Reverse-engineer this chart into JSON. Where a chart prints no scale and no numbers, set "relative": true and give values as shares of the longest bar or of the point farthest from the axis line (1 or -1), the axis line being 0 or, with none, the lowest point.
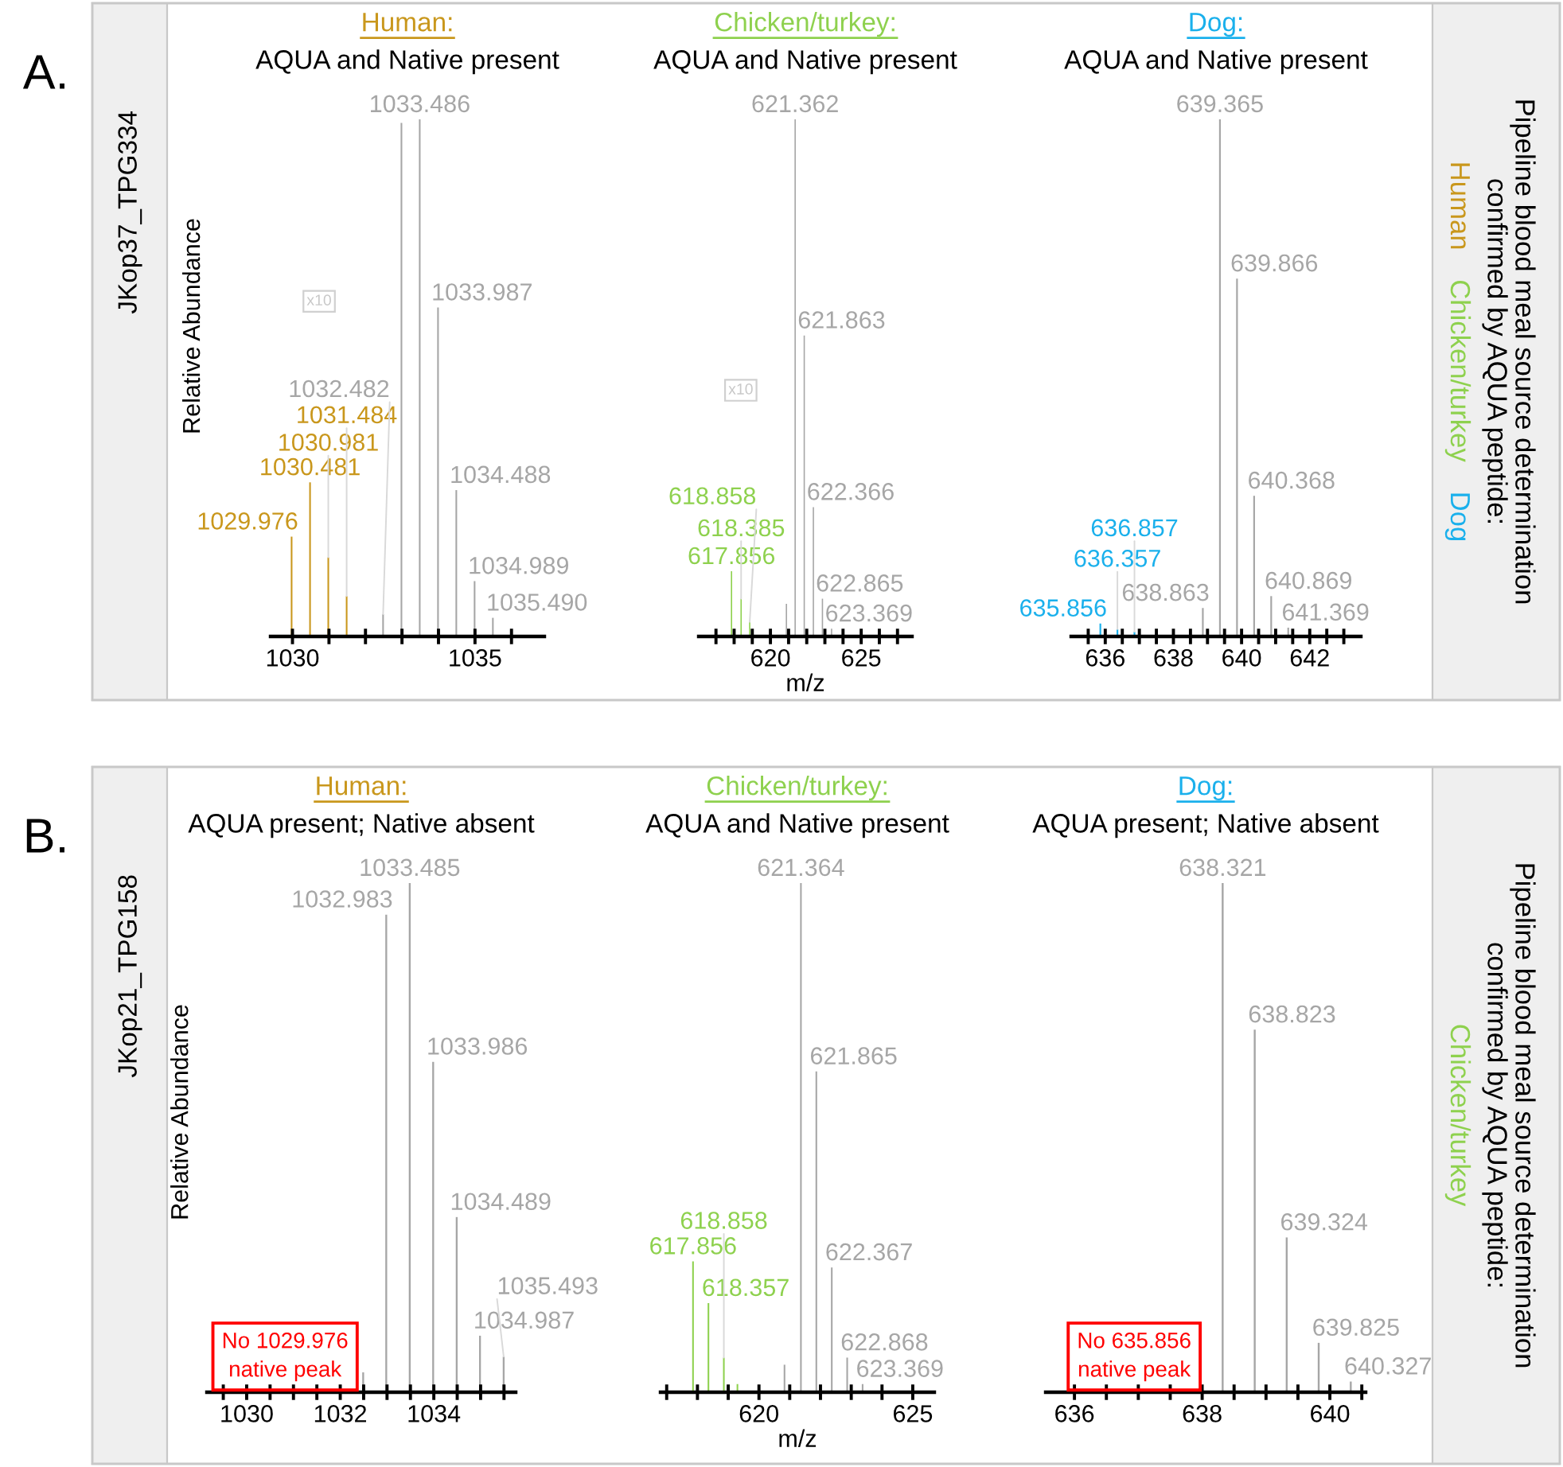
{
  "chart_data": [
    {
      "type": "other",
      "title": "A.",
      "annotations": [
        "JKop37_TPG334"
      ]
    },
    {
      "type": "bar",
      "relative": true,
      "title": "Human:",
      "subtitle": "AQUA and Native present",
      "color": "#c9971c",
      "ylabel": "Relative Abundance",
      "xlim": [
        1029.4,
        1036.9
      ],
      "xticks": [
        1030,
        {
          "value": 1031,
          "label": null
        },
        {
          "value": 1032,
          "label": null
        },
        {
          "value": 1033,
          "label": null
        },
        {
          "value": 1034,
          "label": null
        },
        1035,
        {
          "value": 1036,
          "label": null
        }
      ],
      "series": [
        {
          "color": "#a6a6a6",
          "x": [
            1032.482,
            1032.985,
            1033.486,
            1033.987,
            1034.488,
            1034.989,
            1035.49
          ],
          "values": [
            0.043,
            0.993,
            1,
            0.636,
            0.283,
            0.107,
            0.036
          ]
        },
        {
          "x": [
            1029.976,
            1030.481,
            1030.981,
            1031.484
          ],
          "values": [
            0.193,
            0.298,
            0.153,
            0.078
          ]
        }
      ],
      "annotations": [
        {
          "text": "1032.482",
          "x": 1032.482,
          "y": 0.043
        },
        {
          "text": "1033.486",
          "x": 1033.486,
          "y": 1
        },
        {
          "text": "1033.987",
          "x": 1033.987,
          "y": 0.636
        },
        {
          "text": "1034.488",
          "x": 1034.488,
          "y": 0.283
        },
        {
          "text": "1034.989",
          "x": 1034.989,
          "y": 0.107
        },
        {
          "text": "1035.490",
          "x": 1035.49,
          "y": 0.036
        },
        {
          "text": "1029.976",
          "x": 1029.976,
          "y": 0.193
        },
        {
          "text": "1030.481",
          "x": 1030.481,
          "y": 0.298
        },
        {
          "text": "1030.981",
          "x": 1030.981,
          "y": 0.153
        },
        {
          "text": "1031.484",
          "x": 1031.484,
          "y": 0.078
        },
        "x10"
      ]
    },
    {
      "type": "bar",
      "relative": true,
      "title": "Chicken/turkey:",
      "subtitle": "AQUA and Native present",
      "color": "#8ed14e",
      "xlabel": "m/z",
      "xlim": [
        616.05,
        627.8
      ],
      "xticks": [
        {
          "value": 617,
          "label": null
        },
        {
          "value": 618,
          "label": null
        },
        {
          "value": 619,
          "label": null
        },
        620,
        {
          "value": 621,
          "label": null
        },
        {
          "value": 622,
          "label": null
        },
        {
          "value": 623,
          "label": null
        },
        {
          "value": 624,
          "label": null
        },
        625,
        {
          "value": 626,
          "label": null
        },
        {
          "value": 627,
          "label": null
        }
      ],
      "series": [
        {
          "color": "#a6a6a6",
          "x": [
            620.88,
            621.362,
            621.863,
            622.366,
            622.865,
            623.369
          ],
          "values": [
            0.063,
            1,
            0.582,
            0.25,
            0.073,
            0.015
          ]
        },
        {
          "x": [
            617.856,
            618.385,
            618.858
          ],
          "values": [
            0.126,
            0.073,
            0.028
          ]
        }
      ],
      "annotations": [
        {
          "text": "621.362",
          "x": 621.362,
          "y": 1
        },
        {
          "text": "621.863",
          "x": 621.863,
          "y": 0.582
        },
        {
          "text": "622.366",
          "x": 622.366,
          "y": 0.25
        },
        {
          "text": "622.865",
          "x": 622.865,
          "y": 0.073
        },
        {
          "text": "623.369",
          "x": 623.369,
          "y": 0.015
        },
        {
          "text": "617.856",
          "x": 617.856,
          "y": 0.126
        },
        {
          "text": "618.385",
          "x": 618.385,
          "y": 0.073
        },
        {
          "text": "618.858",
          "x": 618.858,
          "y": 0.028
        },
        "x10"
      ]
    },
    {
      "type": "bar",
      "relative": true,
      "title": "Dog:",
      "subtitle": "AQUA and Native present",
      "color": "#1ab0ec",
      "xlim": [
        635.0,
        643.5
      ],
      "xticks": [
        {
          "value": 635.5,
          "label": null
        },
        636,
        {
          "value": 636.5,
          "label": null
        },
        {
          "value": 637,
          "label": null
        },
        {
          "value": 637.5,
          "label": null
        },
        638,
        {
          "value": 638.5,
          "label": null
        },
        {
          "value": 639,
          "label": null
        },
        {
          "value": 639.5,
          "label": null
        },
        640,
        {
          "value": 640.5,
          "label": null
        },
        {
          "value": 641,
          "label": null
        },
        {
          "value": 641.5,
          "label": null
        },
        642,
        {
          "value": 642.5,
          "label": null
        },
        {
          "value": 643,
          "label": null
        }
      ],
      "series": [
        {
          "color": "#a6a6a6",
          "x": [
            638.863,
            639.365,
            639.866,
            640.368,
            640.869,
            641.369
          ],
          "values": [
            0.055,
            1,
            0.692,
            0.272,
            0.078,
            0.017
          ]
        },
        {
          "x": [
            635.856,
            636.357,
            636.857
          ],
          "values": [
            0.025,
            0.014,
            0.009
          ]
        }
      ],
      "annotations": [
        {
          "text": "638.863",
          "x": 638.863,
          "y": 0.055
        },
        {
          "text": "639.365",
          "x": 639.365,
          "y": 1
        },
        {
          "text": "639.866",
          "x": 639.866,
          "y": 0.692
        },
        {
          "text": "640.368",
          "x": 640.368,
          "y": 0.272
        },
        {
          "text": "640.869",
          "x": 640.869,
          "y": 0.078
        },
        {
          "text": "641.369",
          "x": 641.369,
          "y": 0.017
        },
        {
          "text": "635.856",
          "x": 635.856,
          "y": 0.025
        },
        {
          "text": "636.357",
          "x": 636.357,
          "y": 0.014
        },
        {
          "text": "636.857",
          "x": 636.857,
          "y": 0.009
        }
      ]
    },
    {
      "type": "other",
      "title": "Pipeline blood meal source determination\nconfirmed by AQUA peptide:",
      "series": [
        {
          "name": "Human",
          "color": "#c9971c"
        },
        {
          "name": "Chicken/turkey",
          "color": "#8ed14e"
        },
        {
          "name": "Dog",
          "color": "#1ab0ec"
        }
      ]
    },
    {
      "type": "other",
      "title": "B.",
      "annotations": [
        "JKop21_TPG158"
      ]
    },
    {
      "type": "bar",
      "relative": true,
      "title": "Human:",
      "subtitle": "AQUA present; Native absent",
      "color": "#c9971c",
      "ylabel": "Relative Abundance",
      "xlim": [
        1029.15,
        1035.75
      ],
      "xticks": [
        {
          "value": 1029.5,
          "label": null
        },
        1030,
        {
          "value": 1030.5,
          "label": null
        },
        {
          "value": 1031,
          "label": null
        },
        {
          "value": 1031.5,
          "label": null
        },
        1032,
        {
          "value": 1032.5,
          "label": null
        },
        {
          "value": 1033,
          "label": null
        },
        {
          "value": 1033.5,
          "label": null
        },
        1034,
        {
          "value": 1034.5,
          "label": null
        },
        {
          "value": 1035,
          "label": null
        },
        {
          "value": 1035.5,
          "label": null
        }
      ],
      "series": [
        {
          "color": "#a6a6a6",
          "x": [
            1032.49,
            1032.983,
            1033.485,
            1033.986,
            1034.489,
            1034.987,
            1035.493
          ],
          "values": [
            0.039,
            0.938,
            1,
            0.649,
            0.344,
            0.111,
            0.07
          ]
        }
      ],
      "annotations": [
        {
          "text": "1032.983",
          "x": 1032.983,
          "y": 0.938
        },
        {
          "text": "1033.485",
          "x": 1033.485,
          "y": 1
        },
        {
          "text": "1033.986",
          "x": 1033.986,
          "y": 0.649
        },
        {
          "text": "1034.489",
          "x": 1034.489,
          "y": 0.344
        },
        {
          "text": "1034.987",
          "x": 1034.987,
          "y": 0.111
        },
        {
          "text": "1035.493",
          "x": 1035.493,
          "y": 0.07
        },
        "No 1029.976\nnative peak"
      ]
    },
    {
      "type": "bar",
      "relative": true,
      "title": "Chicken/turkey:",
      "subtitle": "AQUA and Native present",
      "color": "#8ed14e",
      "xlabel": "m/z",
      "xlim": [
        616.8,
        625.7
      ],
      "xticks": [
        {
          "value": 617,
          "label": null
        },
        {
          "value": 618,
          "label": null
        },
        {
          "value": 619,
          "label": null
        },
        620,
        {
          "value": 621,
          "label": null
        },
        {
          "value": 622,
          "label": null
        },
        {
          "value": 623,
          "label": null
        },
        {
          "value": 624,
          "label": null
        },
        625
      ],
      "series": [
        {
          "color": "#a6a6a6",
          "x": [
            620.83,
            621.364,
            621.865,
            622.367,
            622.868,
            623.369
          ],
          "values": [
            0.054,
            1,
            0.63,
            0.245,
            0.068,
            0.016
          ]
        },
        {
          "x": [
            617.856,
            618.357,
            618.858,
            619.3
          ],
          "values": [
            0.257,
            0.175,
            0.068,
            0.016
          ]
        }
      ],
      "annotations": [
        {
          "text": "621.364",
          "x": 621.364,
          "y": 1
        },
        {
          "text": "621.865",
          "x": 621.865,
          "y": 0.63
        },
        {
          "text": "622.367",
          "x": 622.367,
          "y": 0.245
        },
        {
          "text": "622.868",
          "x": 622.868,
          "y": 0.068
        },
        {
          "text": "623.369",
          "x": 623.369,
          "y": 0.016
        },
        {
          "text": "617.856",
          "x": 617.856,
          "y": 0.257
        },
        {
          "text": "618.357",
          "x": 618.357,
          "y": 0.175
        },
        {
          "text": "618.858",
          "x": 618.858,
          "y": 0.068
        }
      ]
    },
    {
      "type": "bar",
      "relative": true,
      "title": "Dog:",
      "subtitle": "AQUA present; Native absent",
      "color": "#1ab0ec",
      "xlim": [
        635.55,
        640.56
      ],
      "xticks": [
        636,
        {
          "value": 636.5,
          "label": null
        },
        {
          "value": 637,
          "label": null
        },
        {
          "value": 637.5,
          "label": null
        },
        638,
        {
          "value": 638.5,
          "label": null
        },
        {
          "value": 639,
          "label": null
        },
        {
          "value": 639.5,
          "label": null
        },
        640,
        {
          "value": 640.5,
          "label": null
        }
      ],
      "series": [
        {
          "color": "#a6a6a6",
          "x": [
            638.321,
            638.823,
            639.324,
            639.825,
            640.327
          ],
          "values": [
            1,
            0.712,
            0.304,
            0.097,
            0.021
          ]
        }
      ],
      "annotations": [
        {
          "text": "638.321",
          "x": 638.321,
          "y": 1
        },
        {
          "text": "638.823",
          "x": 638.823,
          "y": 0.712
        },
        {
          "text": "639.324",
          "x": 639.324,
          "y": 0.304
        },
        {
          "text": "639.825",
          "x": 639.825,
          "y": 0.097
        },
        {
          "text": "640.327",
          "x": 640.327,
          "y": 0.021
        },
        "No 635.856\nnative peak"
      ]
    },
    {
      "type": "other",
      "title": "Pipeline blood meal source determination\nconfirmed by AQUA peptide:",
      "series": [
        {
          "name": "Chicken/turkey",
          "color": "#8ed14e"
        }
      ]
    }
  ]
}
